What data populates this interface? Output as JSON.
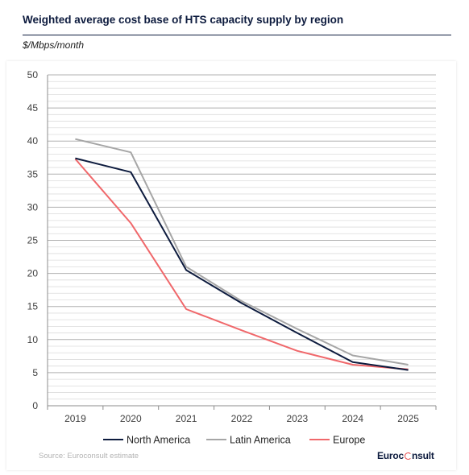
{
  "header": {
    "title": "Weighted average cost base of HTS capacity supply by region",
    "unit_label": "$/Mbps/month"
  },
  "footer": {
    "source": "Source: Euroconsult estimate",
    "logo_left": "Euroc",
    "logo_right": "nsult"
  },
  "chart_data": {
    "type": "line",
    "title": "Weighted average cost base of HTS capacity supply by region",
    "ylabel": "$/Mbps/month",
    "xlabel": "",
    "x": [
      "2019",
      "2020",
      "2021",
      "2022",
      "2023",
      "2024",
      "2025"
    ],
    "ylim": [
      0,
      50
    ],
    "yticks": [
      "0",
      "5",
      "10",
      "15",
      "20",
      "25",
      "30",
      "35",
      "40",
      "45",
      "50"
    ],
    "grid": true,
    "legend": "bottom",
    "series": [
      {
        "name": "North America",
        "color": "#0d1b3e",
        "values": [
          37.4,
          35.3,
          20.5,
          15.5,
          11.0,
          6.6,
          5.4
        ]
      },
      {
        "name": "Latin America",
        "color": "#a6a6a6",
        "values": [
          40.3,
          38.3,
          21.0,
          15.8,
          11.6,
          7.6,
          6.2
        ]
      },
      {
        "name": "Europe",
        "color": "#f0686b",
        "values": [
          37.3,
          27.6,
          14.6,
          11.4,
          8.3,
          6.2,
          5.5
        ]
      }
    ]
  }
}
